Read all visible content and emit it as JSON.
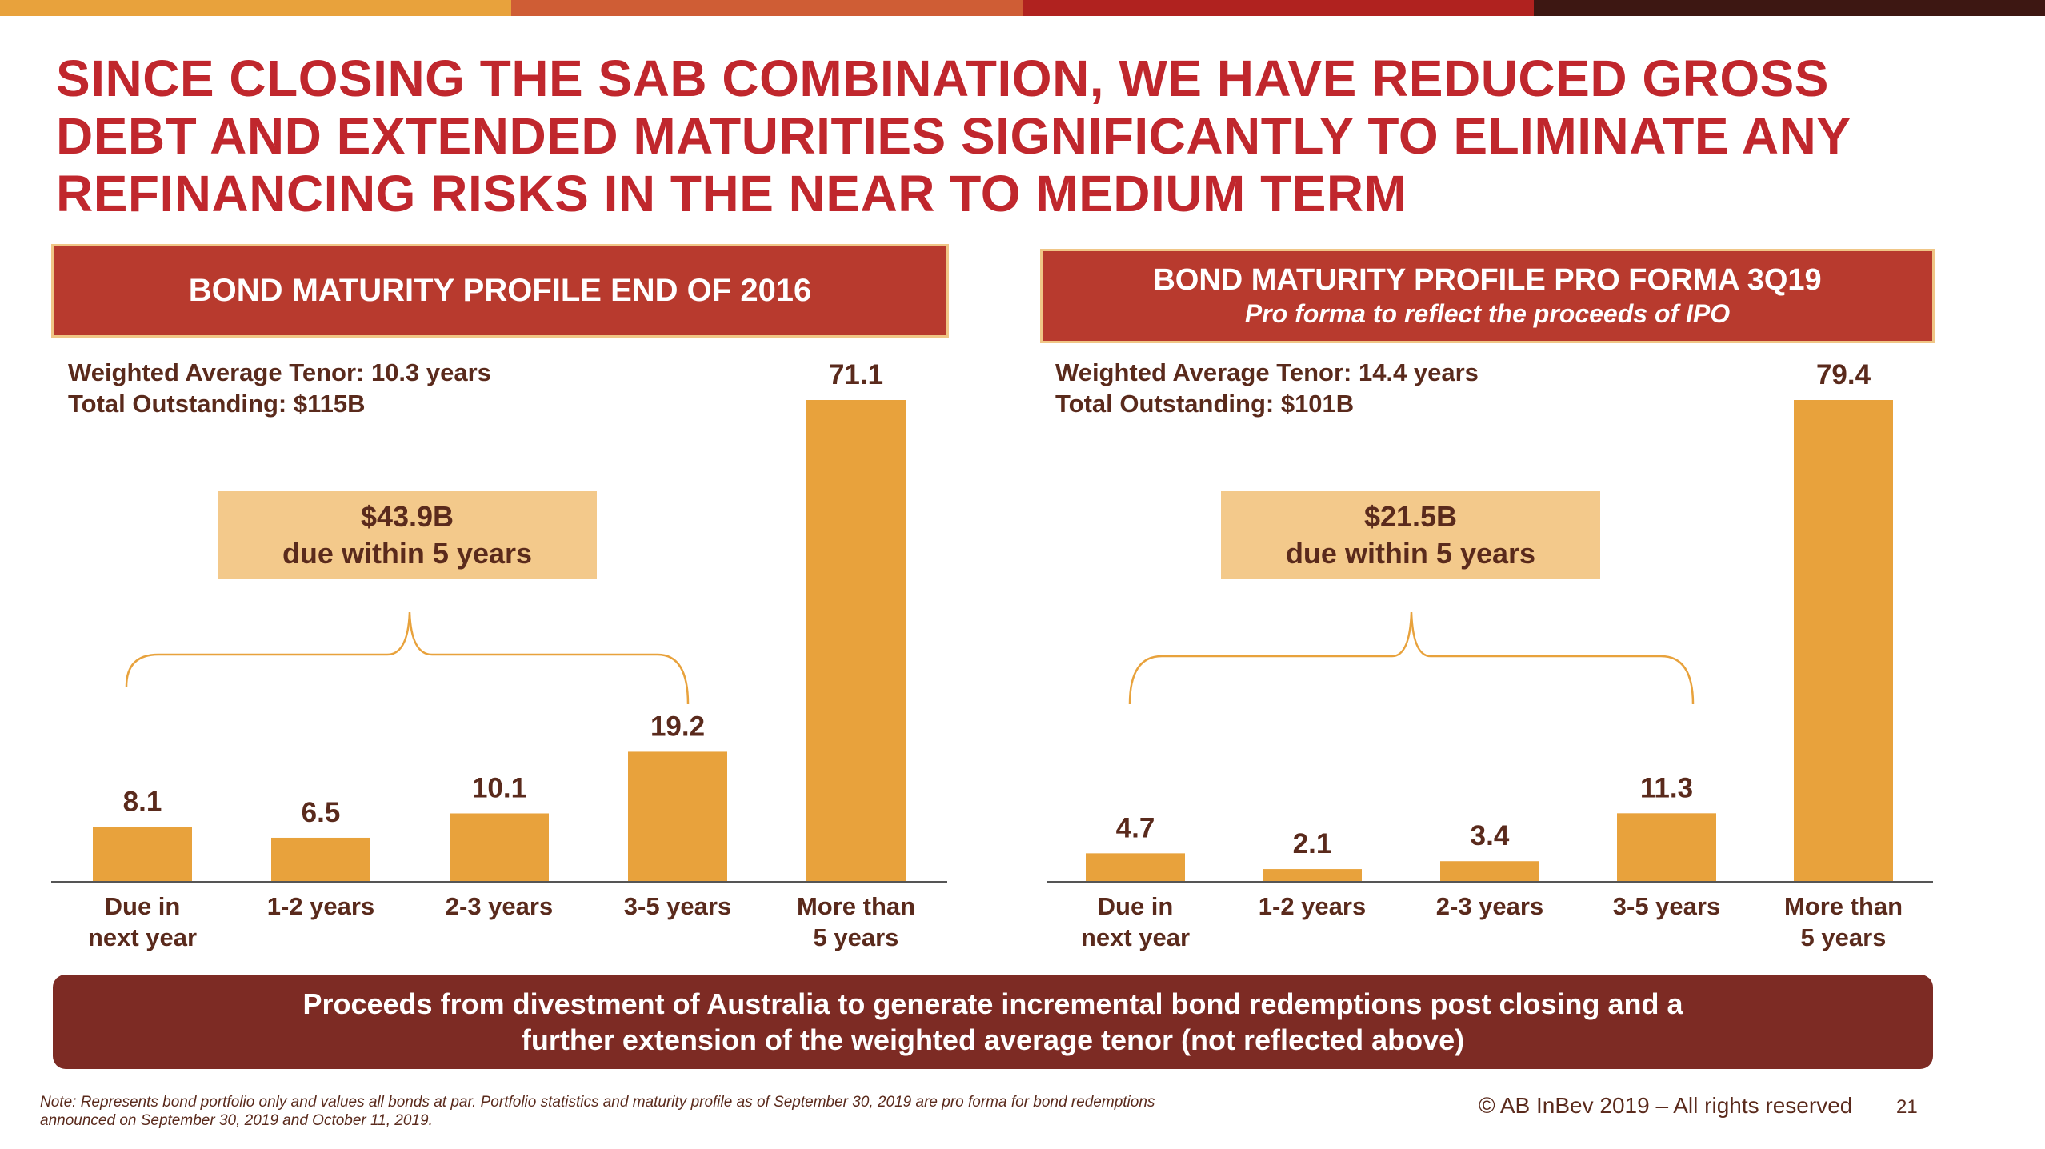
{
  "header_bar_colors": [
    "#e8a23c",
    "#cf5d35",
    "#b0221f",
    "#3d1712"
  ],
  "colors": {
    "bar": "#e8a23c",
    "title": "#c0272d",
    "label_text": "#5a2a1c",
    "panel_header": "#b83a2e",
    "callout": "#f3c98b",
    "banner": "#7d2b24"
  },
  "title_lines": [
    "SINCE CLOSING THE SAB COMBINATION, WE HAVE REDUCED GROSS",
    "DEBT AND EXTENDED MATURITIES SIGNIFICANTLY TO ELIMINATE ANY",
    "REFINANCING RISKS IN THE NEAR TO MEDIUM TERM"
  ],
  "left_panel": {
    "header": "BOND MATURITY PROFILE END OF 2016",
    "stats": [
      "Weighted Average Tenor: 10.3 years",
      "Total Outstanding: $115B"
    ],
    "callout": [
      "$43.9B",
      "due within 5 years"
    ]
  },
  "right_panel": {
    "header": "BOND MATURITY PROFILE PRO FORMA 3Q19",
    "subheader": "Pro forma to reflect the proceeds of IPO",
    "stats": [
      "Weighted Average Tenor: 14.4 years",
      "Total Outstanding: $101B"
    ],
    "callout": [
      "$21.5B",
      "due within 5 years"
    ]
  },
  "chart_data": [
    {
      "type": "bar",
      "title": "BOND MATURITY PROFILE END OF 2016",
      "categories": [
        [
          "Due in",
          "next year"
        ],
        [
          "1-2 years"
        ],
        [
          "2-3 years"
        ],
        [
          "3-5 years"
        ],
        [
          "More than",
          "5 years"
        ]
      ],
      "values": [
        8.1,
        6.5,
        10.1,
        19.2,
        71.1
      ],
      "data_labels": [
        "8.1",
        "6.5",
        "10.1",
        "19.2",
        "71.1"
      ],
      "ylim": [
        0,
        71.1
      ],
      "grid": false,
      "legend": "none"
    },
    {
      "type": "bar",
      "title": "BOND MATURITY PROFILE PRO FORMA 3Q19",
      "categories": [
        [
          "Due in",
          "next year"
        ],
        [
          "1-2 years"
        ],
        [
          "2-3 years"
        ],
        [
          "3-5 years"
        ],
        [
          "More than",
          "5 years"
        ]
      ],
      "values": [
        4.7,
        2.1,
        3.4,
        11.3,
        79.4
      ],
      "data_labels": [
        "4.7",
        "2.1",
        "3.4",
        "11.3",
        "79.4"
      ],
      "ylim": [
        0,
        79.4
      ],
      "grid": false,
      "legend": "none"
    }
  ],
  "bottom_banner": [
    "Proceeds from divestment of Australia to generate incremental bond redemptions post closing and a",
    "further extension of the weighted average tenor (not reflected above)"
  ],
  "note": "Note: Represents bond portfolio only and values all bonds at par. Portfolio statistics and maturity profile as of September 30, 2019 are pro forma for bond redemptions announced on September 30, 2019 and October 11, 2019.",
  "copyright": "© AB InBev 2019 – All rights reserved",
  "page_number": "21"
}
